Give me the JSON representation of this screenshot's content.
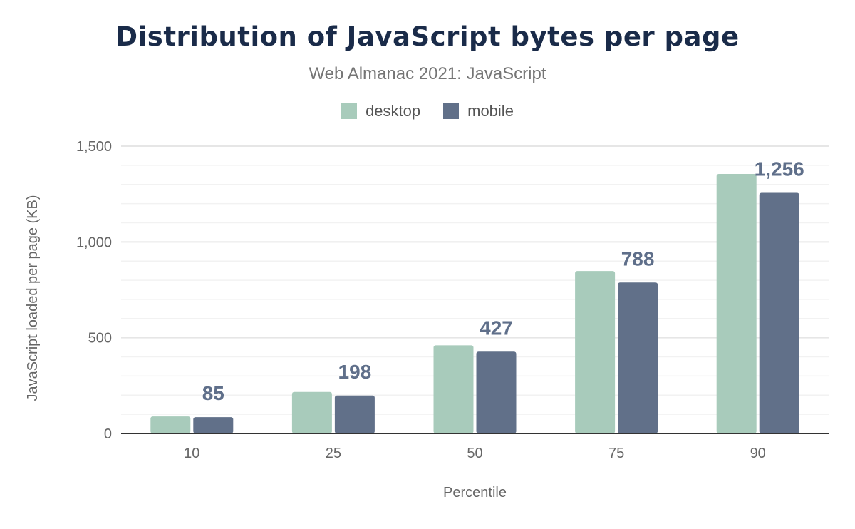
{
  "chart_data": {
    "type": "bar",
    "title": "Distribution of JavaScript bytes per page",
    "subtitle": "Web Almanac 2021: JavaScript",
    "xlabel": "Percentile",
    "ylabel": "JavaScript loaded per page (KB)",
    "categories": [
      "10",
      "25",
      "50",
      "75",
      "90"
    ],
    "series": [
      {
        "name": "desktop",
        "color": "#a8cbbb",
        "values": [
          89,
          217,
          460,
          848,
          1355
        ]
      },
      {
        "name": "mobile",
        "color": "#617089",
        "values": [
          85,
          198,
          427,
          788,
          1256
        ],
        "data_labels": [
          "85",
          "198",
          "427",
          "788",
          "1,256"
        ]
      }
    ],
    "ylim": [
      0,
      1500
    ],
    "yticks": [
      0,
      500,
      1000,
      1500
    ],
    "ytick_labels": [
      "0",
      "500",
      "1,000",
      "1,500"
    ],
    "minor_grid_step": 100,
    "grid": true,
    "legend_position": "top"
  }
}
